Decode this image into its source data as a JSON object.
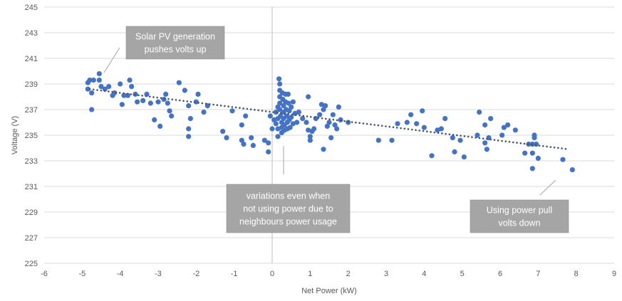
{
  "chart_data": {
    "type": "scatter",
    "xlabel": "Net Power (kW)",
    "ylabel": "Voltage (V)",
    "xlim": [
      -6,
      9
    ],
    "ylim": [
      225,
      245
    ],
    "x_ticks": [
      -6,
      -5,
      -4,
      -3,
      -2,
      -1,
      0,
      1,
      2,
      3,
      4,
      5,
      6,
      7,
      8,
      9
    ],
    "y_ticks": [
      225,
      227,
      229,
      231,
      233,
      235,
      237,
      239,
      241,
      243,
      245
    ],
    "grid": "horizontal",
    "legend": "none",
    "colors": {
      "points": "#4472c4",
      "trendline": "#44546a",
      "callout": "#a5a5a5",
      "grid": "#d9d9d9",
      "zero_line": "#bfbfbf"
    },
    "trendline": {
      "type": "linear",
      "style": "dotted",
      "x": [
        -4.8,
        7.8
      ],
      "y": [
        238.6,
        233.9
      ]
    },
    "points": [
      [
        -4.85,
        239.1
      ],
      [
        -4.8,
        239.3
      ],
      [
        -4.7,
        239.3
      ],
      [
        -4.85,
        238.6
      ],
      [
        -4.75,
        238.3
      ],
      [
        -4.75,
        237.0
      ],
      [
        -4.55,
        239.8
      ],
      [
        -4.55,
        239.3
      ],
      [
        -4.5,
        238.8
      ],
      [
        -4.4,
        238.6
      ],
      [
        -4.3,
        238.8
      ],
      [
        -4.2,
        238.1
      ],
      [
        -4.15,
        238.3
      ],
      [
        -4.0,
        239.0
      ],
      [
        -3.95,
        237.4
      ],
      [
        -3.9,
        238.1
      ],
      [
        -3.8,
        238.1
      ],
      [
        -3.75,
        239.3
      ],
      [
        -3.7,
        238.8
      ],
      [
        -3.6,
        238.2
      ],
      [
        -3.55,
        237.6
      ],
      [
        -3.4,
        237.7
      ],
      [
        -3.3,
        238.2
      ],
      [
        -3.2,
        237.5
      ],
      [
        -3.1,
        236.2
      ],
      [
        -3.0,
        237.6
      ],
      [
        -2.95,
        235.7
      ],
      [
        -2.85,
        237.8
      ],
      [
        -2.8,
        238.2
      ],
      [
        -2.75,
        237.5
      ],
      [
        -2.7,
        236.9
      ],
      [
        -2.65,
        236.5
      ],
      [
        -2.45,
        239.1
      ],
      [
        -2.3,
        238.5
      ],
      [
        -2.2,
        237.3
      ],
      [
        -2.15,
        236.3
      ],
      [
        -2.2,
        235.5
      ],
      [
        -2.2,
        234.9
      ],
      [
        -2.0,
        237.6
      ],
      [
        -1.95,
        238.2
      ],
      [
        -1.8,
        236.8
      ],
      [
        -1.7,
        237.3
      ],
      [
        -1.3,
        235.3
      ],
      [
        -1.2,
        234.8
      ],
      [
        -1.05,
        236.9
      ],
      [
        -0.8,
        235.8
      ],
      [
        -0.7,
        236.5
      ],
      [
        -0.8,
        234.6
      ],
      [
        -0.75,
        234.3
      ],
      [
        -0.55,
        234.8
      ],
      [
        -0.5,
        234.2
      ],
      [
        -0.2,
        234.6
      ],
      [
        -0.1,
        234.4
      ],
      [
        -0.1,
        233.7
      ],
      [
        -0.05,
        236.5
      ],
      [
        0.0,
        235.5
      ],
      [
        0.05,
        236.2
      ],
      [
        0.1,
        236.8
      ],
      [
        0.1,
        235.9
      ],
      [
        0.15,
        237.2
      ],
      [
        0.15,
        236.3
      ],
      [
        0.15,
        235.5
      ],
      [
        0.15,
        234.9
      ],
      [
        0.18,
        239.4
      ],
      [
        0.2,
        239.0
      ],
      [
        0.2,
        238.5
      ],
      [
        0.2,
        238.0
      ],
      [
        0.2,
        237.5
      ],
      [
        0.2,
        237.0
      ],
      [
        0.22,
        236.5
      ],
      [
        0.25,
        236.0
      ],
      [
        0.25,
        235.6
      ],
      [
        0.25,
        235.2
      ],
      [
        0.27,
        238.3
      ],
      [
        0.28,
        237.8
      ],
      [
        0.3,
        237.3
      ],
      [
        0.3,
        236.8
      ],
      [
        0.3,
        236.3
      ],
      [
        0.32,
        235.8
      ],
      [
        0.33,
        235.4
      ],
      [
        0.35,
        238.2
      ],
      [
        0.35,
        237.6
      ],
      [
        0.37,
        237.0
      ],
      [
        0.38,
        236.5
      ],
      [
        0.4,
        236.0
      ],
      [
        0.4,
        235.5
      ],
      [
        0.42,
        238.2
      ],
      [
        0.43,
        237.5
      ],
      [
        0.45,
        236.9
      ],
      [
        0.45,
        236.2
      ],
      [
        0.47,
        235.6
      ],
      [
        0.5,
        237.2
      ],
      [
        0.5,
        236.4
      ],
      [
        0.55,
        237.6
      ],
      [
        0.55,
        235.9
      ],
      [
        0.6,
        236.7
      ],
      [
        0.65,
        236.0
      ],
      [
        0.7,
        236.8
      ],
      [
        0.8,
        236.3
      ],
      [
        0.9,
        236.0
      ],
      [
        0.95,
        238.0
      ],
      [
        0.95,
        235.4
      ],
      [
        1.0,
        234.9
      ],
      [
        1.0,
        234.6
      ],
      [
        1.05,
        235.3
      ],
      [
        1.1,
        235.5
      ],
      [
        1.15,
        236.3
      ],
      [
        1.25,
        236.6
      ],
      [
        1.3,
        237.4
      ],
      [
        1.35,
        237.0
      ],
      [
        1.4,
        237.3
      ],
      [
        1.35,
        233.9
      ],
      [
        1.45,
        235.7
      ],
      [
        1.5,
        236.0
      ],
      [
        1.55,
        234.8
      ],
      [
        1.6,
        236.6
      ],
      [
        1.65,
        235.8
      ],
      [
        1.7,
        235.5
      ],
      [
        1.75,
        237.2
      ],
      [
        1.8,
        236.2
      ],
      [
        2.0,
        236.0
      ],
      [
        2.8,
        234.6
      ],
      [
        3.15,
        234.6
      ],
      [
        3.3,
        235.9
      ],
      [
        3.55,
        236.0
      ],
      [
        3.65,
        236.6
      ],
      [
        3.8,
        235.9
      ],
      [
        3.95,
        236.9
      ],
      [
        4.0,
        235.6
      ],
      [
        4.2,
        233.4
      ],
      [
        4.35,
        235.4
      ],
      [
        4.45,
        235.5
      ],
      [
        4.55,
        236.3
      ],
      [
        4.75,
        234.8
      ],
      [
        4.8,
        233.7
      ],
      [
        4.95,
        234.6
      ],
      [
        5.05,
        233.3
      ],
      [
        5.4,
        235.0
      ],
      [
        5.45,
        236.8
      ],
      [
        5.6,
        235.8
      ],
      [
        5.6,
        234.4
      ],
      [
        5.65,
        233.9
      ],
      [
        5.7,
        234.8
      ],
      [
        5.75,
        236.3
      ],
      [
        6.05,
        235.0
      ],
      [
        6.1,
        235.6
      ],
      [
        6.2,
        235.8
      ],
      [
        6.4,
        235.4
      ],
      [
        6.65,
        233.6
      ],
      [
        6.75,
        234.3
      ],
      [
        6.85,
        232.4
      ],
      [
        6.85,
        233.6
      ],
      [
        6.85,
        234.3
      ],
      [
        6.9,
        234.8
      ],
      [
        6.9,
        235.0
      ],
      [
        6.95,
        234.3
      ],
      [
        7.0,
        233.2
      ],
      [
        7.65,
        233.1
      ],
      [
        7.9,
        232.3
      ]
    ]
  },
  "annotations": [
    {
      "lines": [
        "Solar PV generation",
        "pushes volts up"
      ]
    },
    {
      "lines": [
        "variations even when",
        "not using power due to",
        "neighbours power usage"
      ]
    },
    {
      "lines": [
        "Using power pull",
        "volts down"
      ]
    }
  ]
}
